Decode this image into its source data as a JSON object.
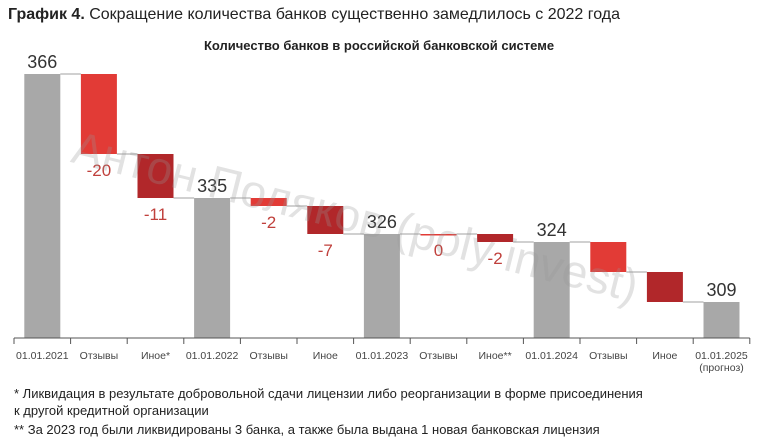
{
  "heading": {
    "prefix": "График 4.",
    "text": "Сокращение количества банков существенно замедлилось с 2022 года"
  },
  "watermark": "Антон Поляков (poly invest)",
  "chart_data": {
    "type": "waterfall",
    "title": "Количество банков в российской банковской системе",
    "categories": [
      "01.01.2021",
      "Отзывы",
      "Иное*",
      "01.01.2022",
      "Отзывы",
      "Иное",
      "01.01.2023",
      "Отзывы",
      "Иное**",
      "01.01.2024",
      "Отзывы",
      "Иное",
      "01.01.2025 (прогноз)"
    ],
    "category_lines": [
      [
        "01.01.2021"
      ],
      [
        "Отзывы"
      ],
      [
        "Иное*"
      ],
      [
        "01.01.2022"
      ],
      [
        "Отзывы"
      ],
      [
        "Иное"
      ],
      [
        "01.01.2023"
      ],
      [
        "Отзывы"
      ],
      [
        "Иное**"
      ],
      [
        "01.01.2024"
      ],
      [
        "Отзывы"
      ],
      [
        "Иное"
      ],
      [
        "01.01.2025",
        "(прогноз)"
      ]
    ],
    "kinds": [
      "total",
      "revocations",
      "other",
      "total",
      "revocations",
      "other",
      "total",
      "revocations",
      "other",
      "total",
      "revocations",
      "other",
      "total"
    ],
    "values": [
      366,
      -20,
      -11,
      335,
      -2,
      -7,
      326,
      0,
      -2,
      324,
      -7.5,
      -7.5,
      309
    ],
    "labels": [
      "366",
      "-20",
      "-11",
      "335",
      "-2",
      "-7",
      "326",
      "0",
      "-2",
      "324",
      "",
      "",
      "309"
    ],
    "ylim": [
      300,
      370
    ],
    "colors": {
      "total": "#a8a8a8",
      "revocations": "#e23b36",
      "other": "#b1272a",
      "delta_label": "#c0403c",
      "connector": "#b5b5b5"
    }
  },
  "footnotes": [
    "*   Ликвидация в результате добровольной сдачи лицензии либо реорганизации в форме присоединения",
    "      к другой кредитной организации",
    "** За 2023 год были ликвидированы 3 банка, а также была выдана 1 новая банковская лицензия"
  ]
}
